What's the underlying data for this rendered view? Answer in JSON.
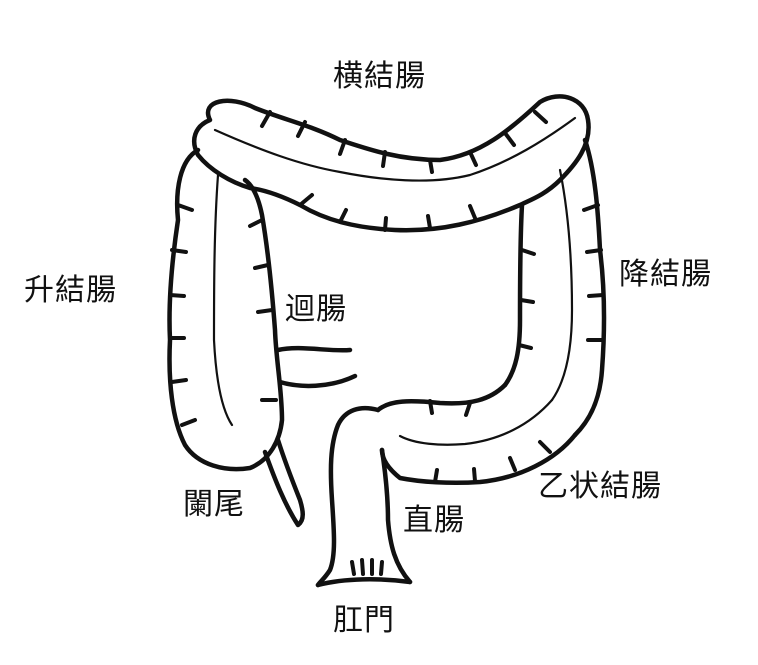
{
  "labels": {
    "transverse_colon": "横結腸",
    "ascending_colon": "升結腸",
    "descending_colon": "降結腸",
    "ileum": "迴腸",
    "appendix": "闌尾",
    "rectum": "直腸",
    "sigmoid_colon": "乙状結腸",
    "anus": "肛門"
  },
  "colors": {
    "line": "#111111",
    "background": "#ffffff"
  }
}
